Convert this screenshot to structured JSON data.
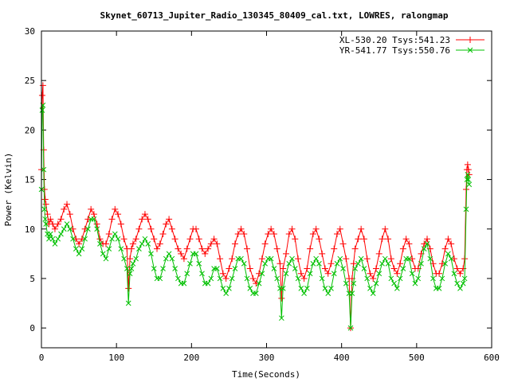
{
  "chart_data": {
    "type": "line",
    "title": "Skynet_60713_Jupiter_Radio_130345_80409_cal.txt, LOWRES, ralongmap",
    "xlabel": "Time(Seconds)",
    "ylabel": "Power (Kelvin)",
    "xlim": [
      0,
      600
    ],
    "ylim": [
      -2,
      30
    ],
    "xticks": [
      0,
      100,
      200,
      300,
      400,
      500,
      600
    ],
    "yticks": [
      0,
      5,
      10,
      15,
      20,
      25,
      30
    ],
    "grid": false,
    "legend_position": "top-right",
    "series": [
      {
        "name": "XL-530.20 Tsys:541.23",
        "color": "#ff0000",
        "marker": "plus",
        "x": [
          0,
          1,
          2,
          3,
          4,
          5,
          6,
          8,
          10,
          12,
          15,
          18,
          22,
          26,
          30,
          34,
          38,
          42,
          46,
          50,
          54,
          58,
          62,
          66,
          70,
          74,
          78,
          82,
          86,
          90,
          94,
          98,
          102,
          106,
          110,
          114,
          116,
          118,
          120,
          122,
          126,
          130,
          134,
          138,
          142,
          146,
          150,
          154,
          158,
          162,
          166,
          170,
          174,
          178,
          182,
          186,
          190,
          194,
          198,
          202,
          206,
          210,
          214,
          218,
          222,
          226,
          230,
          234,
          238,
          242,
          246,
          250,
          254,
          258,
          262,
          266,
          270,
          274,
          278,
          282,
          286,
          290,
          294,
          298,
          302,
          306,
          310,
          314,
          318,
          320,
          322,
          326,
          330,
          334,
          338,
          342,
          346,
          350,
          354,
          358,
          362,
          366,
          370,
          374,
          378,
          382,
          386,
          390,
          394,
          398,
          402,
          406,
          410,
          412,
          414,
          416,
          418,
          422,
          426,
          430,
          434,
          438,
          442,
          446,
          450,
          454,
          458,
          462,
          466,
          470,
          474,
          478,
          482,
          486,
          490,
          494,
          498,
          502,
          506,
          510,
          514,
          518,
          522,
          526,
          530,
          534,
          538,
          542,
          546,
          550,
          554,
          558,
          562,
          564,
          566,
          567,
          568,
          569,
          570
        ],
        "y": [
          16,
          23.5,
          24.5,
          18,
          14,
          13,
          12.5,
          11.5,
          10.5,
          11,
          10.5,
          10,
          10.5,
          11,
          12,
          12.5,
          11.5,
          10,
          9,
          8.5,
          9,
          10,
          11,
          12,
          11.5,
          10.5,
          9,
          8.5,
          8.5,
          9.5,
          11,
          12,
          11.5,
          10.5,
          9,
          8,
          4,
          7,
          8,
          8.5,
          9,
          10,
          11,
          11.5,
          11,
          10,
          9,
          8,
          8.5,
          9.5,
          10.5,
          11,
          10,
          9,
          8,
          7.5,
          7,
          8,
          9,
          10,
          10,
          9,
          8,
          7.5,
          8,
          8.5,
          9,
          8.5,
          7,
          5.5,
          5,
          6,
          7,
          8.5,
          9.5,
          10,
          9.5,
          8,
          6,
          5,
          4.5,
          5.5,
          7,
          8.5,
          9.5,
          10,
          9.5,
          8,
          6.5,
          3,
          6,
          7.5,
          9.5,
          10,
          9,
          7,
          5.5,
          5,
          6,
          8,
          9.5,
          10,
          9,
          7.5,
          6,
          5.5,
          6.5,
          8,
          9.5,
          10,
          8.5,
          7,
          5,
          0,
          5,
          6.5,
          8,
          9,
          10,
          9,
          7,
          5.5,
          5,
          6,
          7.5,
          9,
          10,
          9,
          7,
          6,
          5.5,
          6.5,
          8,
          9,
          8.5,
          7,
          6,
          6,
          7.5,
          8.5,
          9,
          8,
          6.5,
          5.5,
          5.5,
          6.5,
          8,
          9,
          8.5,
          7,
          6,
          5.5,
          6,
          7,
          14,
          16,
          16.5,
          16,
          15.5
        ]
      },
      {
        "name": "YR-541.77 Tsys:550.76",
        "color": "#00c000",
        "marker": "x",
        "x": [
          0,
          1,
          2,
          3,
          4,
          5,
          6,
          8,
          10,
          12,
          15,
          18,
          22,
          26,
          30,
          34,
          38,
          42,
          46,
          50,
          54,
          58,
          62,
          66,
          70,
          74,
          78,
          82,
          86,
          90,
          94,
          98,
          102,
          106,
          110,
          114,
          116,
          118,
          120,
          122,
          126,
          130,
          134,
          138,
          142,
          146,
          150,
          154,
          158,
          162,
          166,
          170,
          174,
          178,
          182,
          186,
          190,
          194,
          198,
          202,
          206,
          210,
          214,
          218,
          222,
          226,
          230,
          234,
          238,
          242,
          246,
          250,
          254,
          258,
          262,
          266,
          270,
          274,
          278,
          282,
          286,
          290,
          294,
          298,
          302,
          306,
          310,
          314,
          318,
          320,
          322,
          326,
          330,
          334,
          338,
          342,
          346,
          350,
          354,
          358,
          362,
          366,
          370,
          374,
          378,
          382,
          386,
          390,
          394,
          398,
          402,
          406,
          410,
          412,
          414,
          416,
          418,
          422,
          426,
          430,
          434,
          438,
          442,
          446,
          450,
          454,
          458,
          462,
          466,
          470,
          474,
          478,
          482,
          486,
          490,
          494,
          498,
          502,
          506,
          510,
          514,
          518,
          522,
          526,
          530,
          534,
          538,
          542,
          546,
          550,
          554,
          558,
          562,
          564,
          566,
          567,
          568,
          569,
          570
        ],
        "y": [
          14,
          22,
          22.5,
          16,
          12,
          11,
          10.5,
          9.5,
          9,
          9.5,
          9,
          8.5,
          9,
          9.5,
          10,
          10.5,
          10,
          9,
          8,
          7.5,
          8,
          9,
          10,
          11,
          11,
          10,
          8.5,
          7.5,
          7,
          8,
          9,
          9.5,
          9,
          8,
          7,
          6,
          2.5,
          5.5,
          6,
          6.5,
          7,
          8,
          8.5,
          9,
          8.5,
          7.5,
          6,
          5,
          5,
          6,
          7,
          7.5,
          7,
          6,
          5,
          4.5,
          4.5,
          5.5,
          6.5,
          7.5,
          7.5,
          6.5,
          5.5,
          4.5,
          4.5,
          5,
          6,
          6,
          5,
          4,
          3.5,
          4,
          5,
          6,
          7,
          7,
          6.5,
          5,
          4,
          3.5,
          3.5,
          4.5,
          5.5,
          6.5,
          7,
          7,
          6,
          5,
          4,
          1,
          4,
          5.5,
          6.5,
          7,
          6,
          5,
          4,
          3.5,
          4,
          5.5,
          6.5,
          7,
          6.5,
          5,
          4,
          3.5,
          4,
          5.5,
          6.5,
          7,
          6,
          4.5,
          3.5,
          0,
          3.5,
          4.5,
          6,
          6.5,
          7,
          6,
          5,
          4,
          3.5,
          4.5,
          5.5,
          6.5,
          7,
          6.5,
          5,
          4.5,
          4,
          5,
          6,
          7,
          7,
          5.5,
          4.5,
          5,
          6.5,
          8,
          8.5,
          7,
          5,
          4,
          4,
          5,
          6.5,
          7.5,
          7,
          5.5,
          4.5,
          4,
          4.5,
          5,
          12,
          15,
          15.5,
          15,
          14.5
        ]
      }
    ]
  }
}
